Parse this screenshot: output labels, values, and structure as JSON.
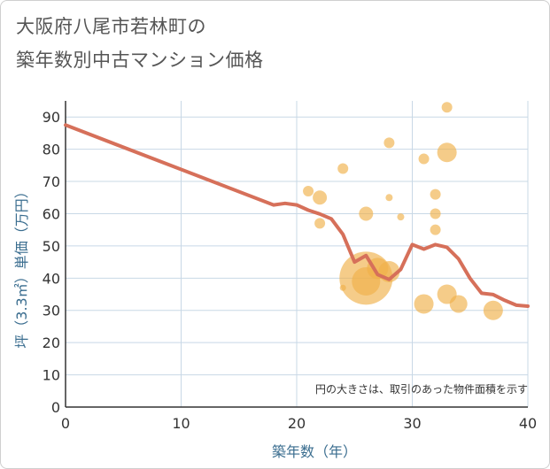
{
  "chart_data": {
    "type": "scatter",
    "title_line1": "大阪府八尾市若林町の",
    "title_line2": "築年数別中古マンション価格",
    "xlabel": "築年数（年）",
    "ylabel": "坪（3.3㎡）単価（万円）",
    "xlim": [
      0,
      40
    ],
    "ylim": [
      0,
      95
    ],
    "x_ticks": [
      0,
      10,
      20,
      30,
      40
    ],
    "y_ticks": [
      0,
      10,
      20,
      30,
      40,
      50,
      60,
      70,
      80,
      90
    ],
    "note": "円の大きさは、取引のあった物件面積を示す",
    "colors": {
      "line": "#d6705a",
      "bubble": "#f0b04a",
      "grid": "#c8d8e6",
      "axis_text": "#3a6d8f"
    },
    "series": [
      {
        "name": "trend",
        "type": "line",
        "x": [
          0,
          18,
          19,
          20,
          21,
          22,
          23,
          24,
          25,
          26,
          27,
          28,
          29,
          30,
          31,
          32,
          33,
          34,
          35,
          36,
          37,
          38,
          39,
          40
        ],
        "y": [
          87.5,
          62.7,
          63.2,
          62.7,
          61.1,
          59.9,
          58.4,
          53.6,
          45.0,
          47.0,
          41.1,
          39.6,
          42.7,
          50.4,
          49.0,
          50.4,
          49.6,
          46.0,
          39.9,
          35.3,
          34.9,
          33.1,
          31.6,
          31.3
        ]
      },
      {
        "name": "transactions",
        "type": "bubble",
        "points": [
          {
            "x": 21,
            "y": 67,
            "size": 1.2
          },
          {
            "x": 22,
            "y": 65,
            "size": 1.6
          },
          {
            "x": 22,
            "y": 57,
            "size": 1.2
          },
          {
            "x": 24,
            "y": 74,
            "size": 1.2
          },
          {
            "x": 24,
            "y": 37,
            "size": 0.7
          },
          {
            "x": 26,
            "y": 60,
            "size": 1.6
          },
          {
            "x": 26,
            "y": 40,
            "size": 6.0
          },
          {
            "x": 26,
            "y": 39,
            "size": 3.2
          },
          {
            "x": 27,
            "y": 43,
            "size": 2.4
          },
          {
            "x": 28,
            "y": 82,
            "size": 1.2
          },
          {
            "x": 28,
            "y": 65,
            "size": 0.8
          },
          {
            "x": 28,
            "y": 42,
            "size": 2.4
          },
          {
            "x": 29,
            "y": 59,
            "size": 0.8
          },
          {
            "x": 31,
            "y": 77,
            "size": 1.2
          },
          {
            "x": 31,
            "y": 32,
            "size": 2.2
          },
          {
            "x": 32,
            "y": 66,
            "size": 1.2
          },
          {
            "x": 32,
            "y": 60,
            "size": 1.2
          },
          {
            "x": 32,
            "y": 55,
            "size": 1.2
          },
          {
            "x": 33,
            "y": 93,
            "size": 1.2
          },
          {
            "x": 33,
            "y": 79,
            "size": 2.2
          },
          {
            "x": 33,
            "y": 35,
            "size": 2.2
          },
          {
            "x": 34,
            "y": 32,
            "size": 2.0
          },
          {
            "x": 37,
            "y": 30,
            "size": 2.2
          }
        ]
      }
    ]
  }
}
